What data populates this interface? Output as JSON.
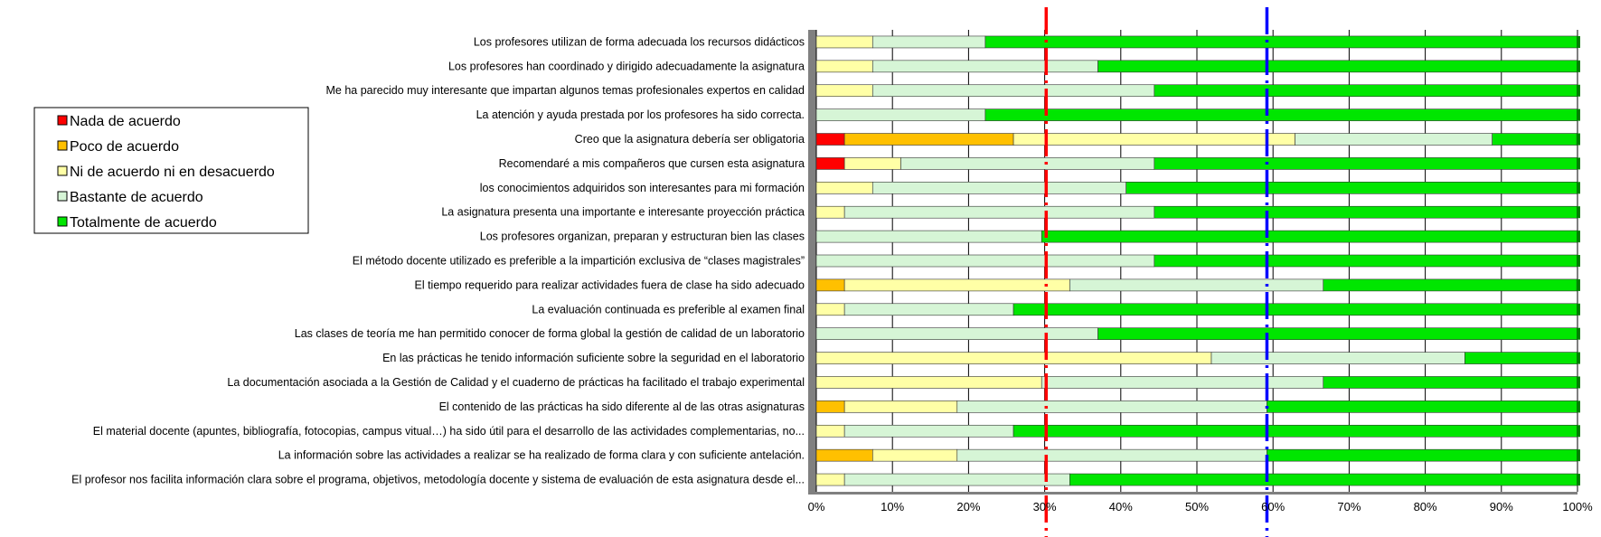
{
  "chart_data": {
    "type": "bar",
    "orientation": "horizontal",
    "stacked": true,
    "xlim": [
      0,
      100
    ],
    "x_ticks": [
      "0%",
      "10%",
      "20%",
      "30%",
      "40%",
      "50%",
      "60%",
      "70%",
      "80%",
      "90%",
      "100%"
    ],
    "grid": true,
    "legend_position": "left",
    "categories": [
      "Los profesores utilizan de forma adecuada los recursos didácticos",
      "Los profesores  han coordinado y dirigido adecuadamente  la asignatura",
      "Me ha parecido muy interesante que impartan algunos temas profesionales expertos en calidad",
      "La atención y ayuda prestada por los profesores ha sido correcta.",
      "Creo que la asignatura debería ser obligatoria",
      "Recomendaré a mis compañeros que cursen esta asignatura",
      "los conocimientos adquiridos son interesantes para mi formación",
      "La asignatura presenta una importante e interesante  proyección práctica",
      "Los profesores organizan, preparan y estructuran bien las clases",
      "El método  docente  utilizado es preferible a  la impartición exclusiva de “clases magistrales”",
      "El tiempo requerido para realizar actividades fuera de clase ha sido adecuado",
      "La evaluación continuada es preferible al examen final",
      "Las clases de teoría me han permitido conocer de forma global  la gestión de calidad de un laboratorio",
      "En las prácticas he tenido información suficiente  sobre la seguridad en el laboratorio",
      "La documentación asociada a la Gestión de Calidad y el cuaderno de prácticas ha facilitado el trabajo experimental",
      "El contenido de las prácticas ha sido diferente al de las otras asignaturas",
      "El material docente (apuntes, bibliografía, fotocopias, campus vitual…)  ha sido útil  para el desarrollo de las actividades complementarias,  no...",
      "La información  sobre las actividades a realizar se ha realizado de forma clara y con suficiente antelación.",
      "El profesor nos facilita información clara sobre el programa, objetivos, metodología docente  y  sistema de evaluación de esta asignatura desde el..."
    ],
    "series": [
      {
        "name": "Nada de acuerdo",
        "color": "#ff0000",
        "values": [
          0,
          0,
          0,
          0,
          3.7,
          3.7,
          0,
          0,
          0,
          0,
          0,
          0,
          0,
          0,
          0,
          0,
          0,
          0,
          0
        ]
      },
      {
        "name": "Poco de acuerdo",
        "color": "#ffc000",
        "values": [
          0,
          0,
          0,
          0,
          22.2,
          0,
          0,
          0,
          0,
          0,
          3.7,
          0,
          0,
          0,
          0,
          3.7,
          0,
          7.4,
          0
        ]
      },
      {
        "name": "Ni de acuerdo ni en desacuerdo",
        "color": "#ffffa6",
        "values": [
          7.4,
          7.4,
          7.4,
          0,
          37,
          7.4,
          7.4,
          3.7,
          0,
          0,
          29.6,
          3.7,
          0,
          51.9,
          29.6,
          14.8,
          3.7,
          11.1,
          3.7
        ]
      },
      {
        "name": "Bastante de acuerdo",
        "color": "#d6f5d6",
        "values": [
          14.8,
          29.6,
          37,
          22.2,
          25.9,
          33.3,
          33.3,
          40.7,
          29.6,
          44.4,
          33.3,
          22.2,
          37,
          33.3,
          37,
          40.7,
          22.2,
          40.7,
          29.6
        ]
      },
      {
        "name": "Totalmente de acuerdo",
        "color": "#00e600",
        "values": [
          77.8,
          63,
          55.6,
          77.8,
          11.1,
          55.6,
          59.3,
          55.6,
          70.4,
          55.6,
          33.3,
          74.1,
          63,
          14.8,
          33.4,
          40.8,
          74.1,
          40.8,
          66.7
        ]
      }
    ],
    "reference_lines": [
      {
        "value": 30.2,
        "color": "#ff0000"
      },
      {
        "value": 59.2,
        "color": "#0000ff"
      }
    ]
  }
}
